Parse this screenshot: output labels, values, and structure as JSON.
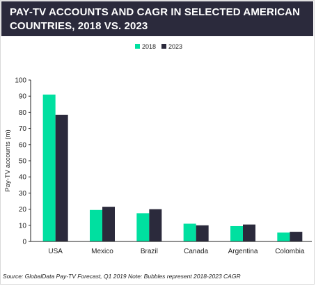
{
  "title": "PAY-TV ACCOUNTS AND CAGR IN SELECTED AMERICAN COUNTRIES, 2018 VS. 2023",
  "source": "Source: GlobalData Pay-TV Forecast, Q1 2019 Note: Bubbles represent 2018-2023 CAGR",
  "colors": {
    "s2018": "#00e0a0",
    "s2023": "#2b2a3c",
    "header": "#2b2a3c"
  },
  "chart_data": {
    "type": "bar",
    "categories": [
      "USA",
      "Mexico",
      "Brazil",
      "Canada",
      "Argentina",
      "Colombia"
    ],
    "series": [
      {
        "name": "2018",
        "values": [
          91,
          19.5,
          17.5,
          11,
          9.5,
          5.5
        ]
      },
      {
        "name": "2023",
        "values": [
          78.5,
          21.5,
          20,
          10,
          10.5,
          6
        ]
      }
    ],
    "xlabel": "",
    "ylabel": "Pay-TV accounts (m)",
    "ylim": [
      0,
      100
    ],
    "yticks": [
      0,
      10,
      20,
      30,
      40,
      50,
      60,
      70,
      80,
      90,
      100
    ],
    "legend": "top-center",
    "grid": false
  }
}
